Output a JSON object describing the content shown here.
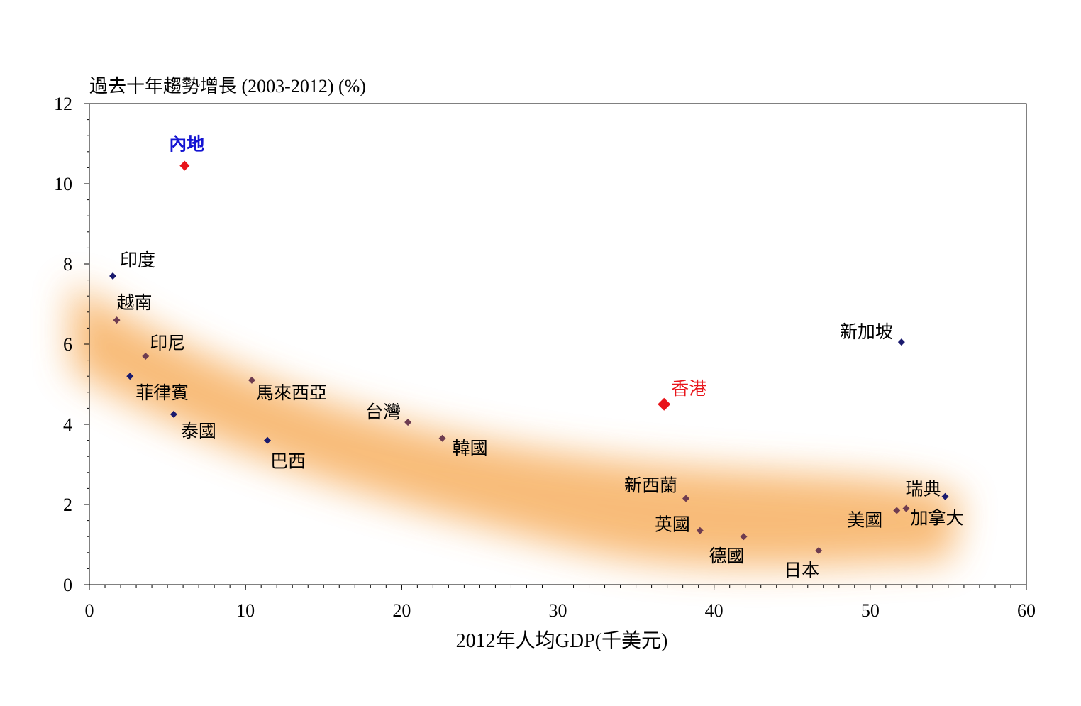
{
  "chart_data": {
    "type": "scatter",
    "title": "過去十年趨勢增長 (2003-2012)  (%)",
    "xlabel": "2012年人均GDP(千美元)",
    "ylabel": "",
    "xlim": [
      0,
      60
    ],
    "ylim": [
      0,
      12
    ],
    "x_ticks": [
      0,
      10,
      20,
      30,
      40,
      50,
      60
    ],
    "y_ticks": [
      0,
      2,
      4,
      6,
      8,
      10,
      12
    ],
    "x_tick_labels": [
      "0",
      "10",
      "20",
      "30",
      "40",
      "50",
      "60"
    ],
    "y_tick_labels": [
      "0",
      "2",
      "4",
      "6",
      "8",
      "10",
      "12"
    ],
    "grid": false,
    "legend": "none",
    "background_band": "orange trend band",
    "colors": {
      "highlight": "#e8141a",
      "highlight_label_mainland": "#1414d2",
      "highlight_label_hk": "#e8141a",
      "navy_point": "#1a1a6e",
      "brown_point": "#6e3c50",
      "band": "#f7b062"
    },
    "points": [
      {
        "label": "內地",
        "x": 6.1,
        "y": 10.45,
        "style": "highlight",
        "label_style": "mainland"
      },
      {
        "label": "香港",
        "x": 36.8,
        "y": 4.5,
        "style": "highlight-large",
        "label_style": "hk"
      },
      {
        "label": "印度",
        "x": 1.5,
        "y": 7.7,
        "style": "navy"
      },
      {
        "label": "越南",
        "x": 1.75,
        "y": 6.6,
        "style": "brown"
      },
      {
        "label": "印尼",
        "x": 3.6,
        "y": 5.7,
        "style": "brown"
      },
      {
        "label": "菲律賓",
        "x": 2.6,
        "y": 5.2,
        "style": "navy"
      },
      {
        "label": "泰國",
        "x": 5.4,
        "y": 4.25,
        "style": "navy"
      },
      {
        "label": "馬來西亞",
        "x": 10.4,
        "y": 5.1,
        "style": "brown"
      },
      {
        "label": "巴西",
        "x": 11.4,
        "y": 3.6,
        "style": "navy"
      },
      {
        "label": "台灣",
        "x": 20.4,
        "y": 4.05,
        "style": "brown"
      },
      {
        "label": "韓國",
        "x": 22.6,
        "y": 3.65,
        "style": "brown"
      },
      {
        "label": "新西蘭",
        "x": 38.2,
        "y": 2.15,
        "style": "brown"
      },
      {
        "label": "英國",
        "x": 39.1,
        "y": 1.35,
        "style": "brown"
      },
      {
        "label": "德國",
        "x": 41.9,
        "y": 1.2,
        "style": "brown"
      },
      {
        "label": "日本",
        "x": 46.7,
        "y": 0.85,
        "style": "brown"
      },
      {
        "label": "新加坡",
        "x": 52.0,
        "y": 6.05,
        "style": "navy"
      },
      {
        "label": "瑞典",
        "x": 54.8,
        "y": 2.2,
        "style": "navy"
      },
      {
        "label": "美國",
        "x": 51.7,
        "y": 1.85,
        "style": "brown"
      },
      {
        "label": "加拿大",
        "x": 52.3,
        "y": 1.9,
        "style": "brown"
      }
    ]
  }
}
